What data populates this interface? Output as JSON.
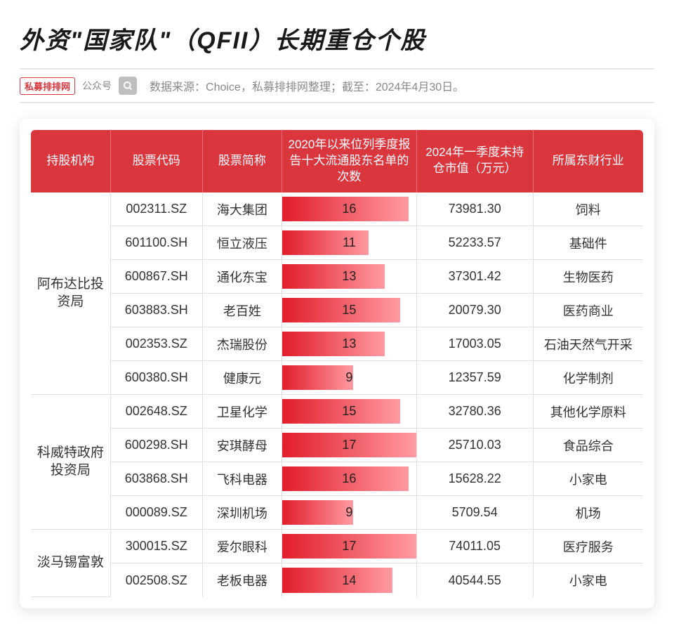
{
  "title": "外资\"国家队\"（QFII）长期重仓个股",
  "tag_text": "私募排排网",
  "tag_suffix": "公众号",
  "source_text": "数据来源：Choice，私募排排网整理；截至：2024年4月30日。",
  "columns": {
    "c0": "持股机构",
    "c1": "股票代码",
    "c2": "股票简称",
    "c3": "2020年以来位列季度报告十大流通股东名单的次数",
    "c4": "2024年一季度末持仓市值（万元）",
    "c5": "所属东财行业"
  },
  "bar_style": {
    "max_value": 17,
    "gradient_from": "#e11d2a",
    "gradient_to": "#ff9aa2"
  },
  "groups": [
    {
      "institution": "阿布达比投资局",
      "rows": [
        {
          "code": "002311.SZ",
          "name": "海大集团",
          "count": 16,
          "value": "73981.30",
          "industry": "饲料"
        },
        {
          "code": "601100.SH",
          "name": "恒立液压",
          "count": 11,
          "value": "52233.57",
          "industry": "基础件"
        },
        {
          "code": "600867.SH",
          "name": "通化东宝",
          "count": 13,
          "value": "37301.42",
          "industry": "生物医药"
        },
        {
          "code": "603883.SH",
          "name": "老百姓",
          "count": 15,
          "value": "20079.30",
          "industry": "医药商业"
        },
        {
          "code": "002353.SZ",
          "name": "杰瑞股份",
          "count": 13,
          "value": "17003.05",
          "industry": "石油天然气开采"
        },
        {
          "code": "600380.SH",
          "name": "健康元",
          "count": 9,
          "value": "12357.59",
          "industry": "化学制剂"
        }
      ]
    },
    {
      "institution": "科威特政府投资局",
      "rows": [
        {
          "code": "002648.SZ",
          "name": "卫星化学",
          "count": 15,
          "value": "32780.36",
          "industry": "其他化学原料"
        },
        {
          "code": "600298.SH",
          "name": "安琪酵母",
          "count": 17,
          "value": "25710.03",
          "industry": "食品综合"
        },
        {
          "code": "603868.SH",
          "name": "飞科电器",
          "count": 16,
          "value": "15628.22",
          "industry": "小家电"
        },
        {
          "code": "000089.SZ",
          "name": "深圳机场",
          "count": 9,
          "value": "5709.54",
          "industry": "机场"
        }
      ]
    },
    {
      "institution": "淡马锡富敦",
      "rows": [
        {
          "code": "300015.SZ",
          "name": "爱尔眼科",
          "count": 17,
          "value": "74011.05",
          "industry": "医疗服务"
        },
        {
          "code": "002508.SZ",
          "name": "老板电器",
          "count": 14,
          "value": "40544.55",
          "industry": "小家电"
        }
      ]
    }
  ]
}
